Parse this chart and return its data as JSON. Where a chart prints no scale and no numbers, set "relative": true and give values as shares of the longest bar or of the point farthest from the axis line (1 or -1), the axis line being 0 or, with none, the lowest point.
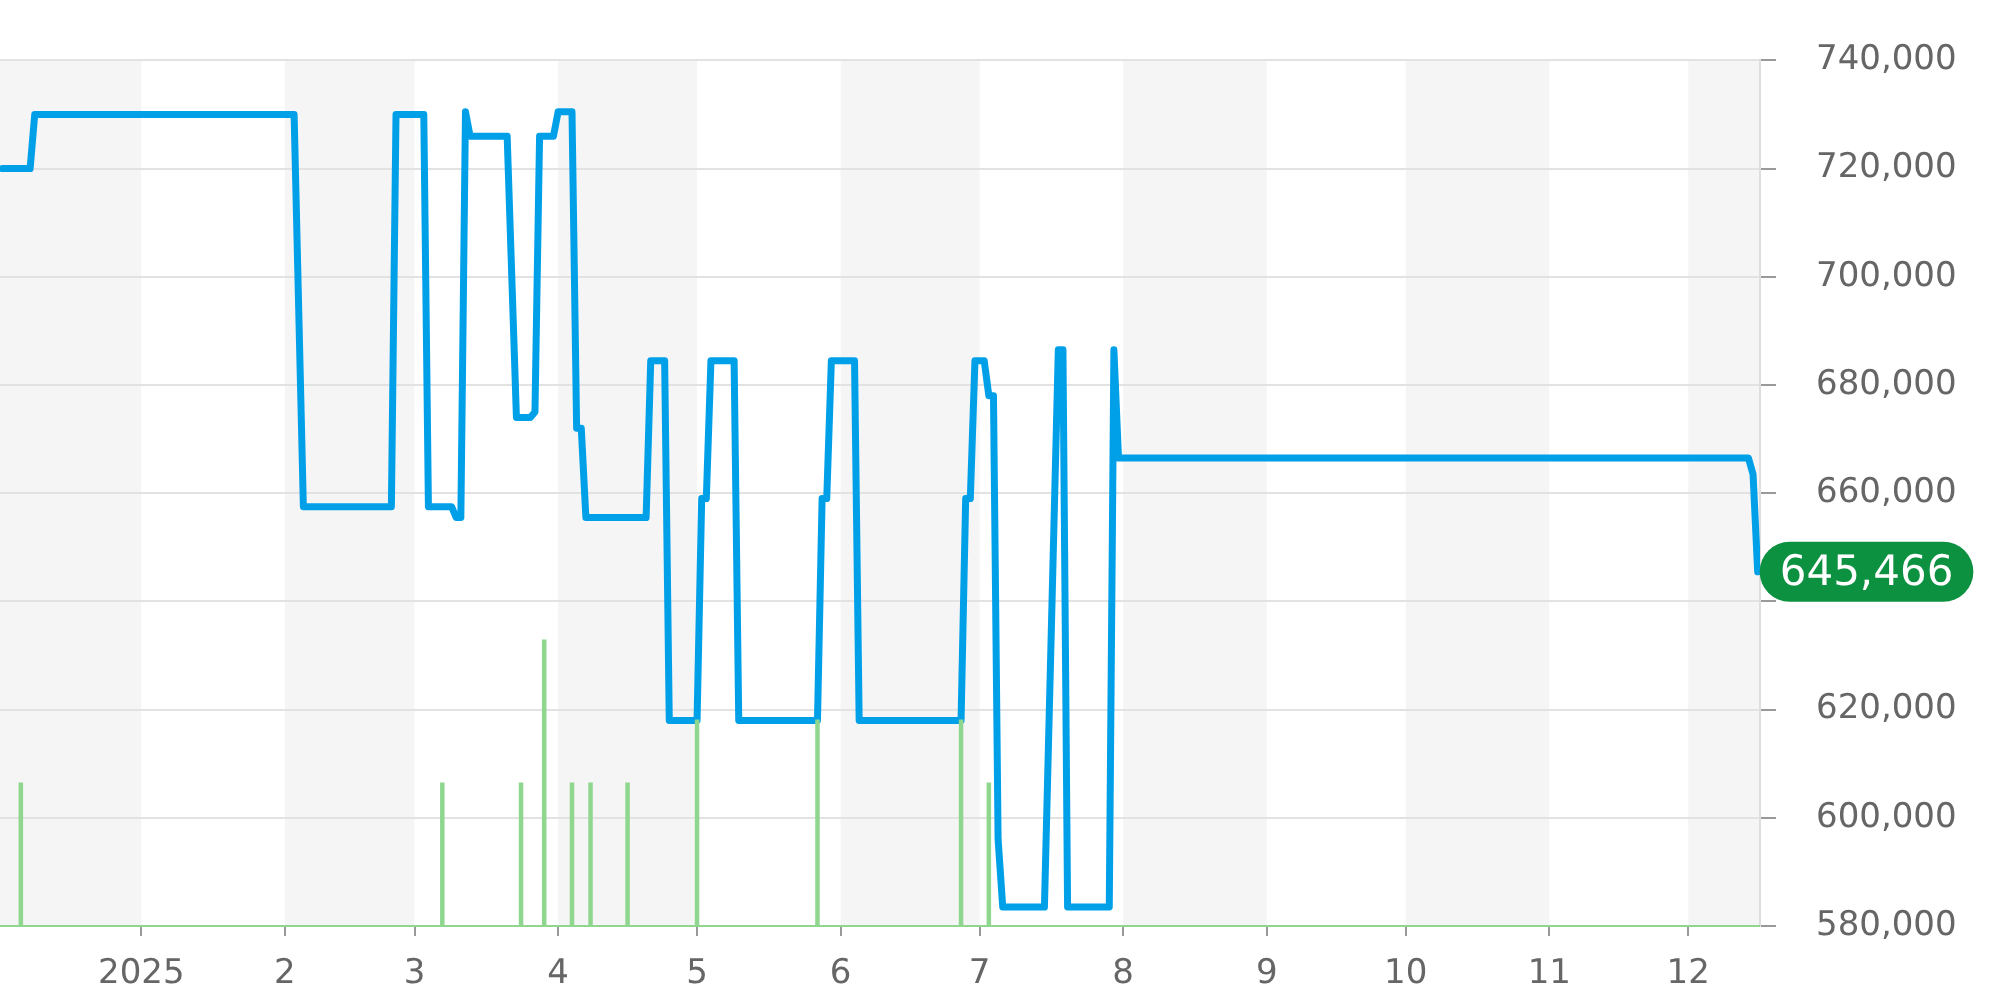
{
  "chart_data": [
    {
      "type": "line",
      "xlim": [
        "2024-12-01T12:00",
        "2025-12-16T12:00"
      ],
      "xticks": [
        {
          "value": "2025-01-01",
          "label": "2025"
        },
        {
          "value": "2025-02-01",
          "label": "2"
        },
        {
          "value": "2025-03-01",
          "label": "3"
        },
        {
          "value": "2025-04-01",
          "label": "4"
        },
        {
          "value": "2025-05-01",
          "label": "5"
        },
        {
          "value": "2025-06-01",
          "label": "6"
        },
        {
          "value": "2025-07-01",
          "label": "7"
        },
        {
          "value": "2025-08-01",
          "label": "8"
        },
        {
          "value": "2025-09-01",
          "label": "9"
        },
        {
          "value": "2025-10-01",
          "label": "10"
        },
        {
          "value": "2025-11-01",
          "label": "11"
        },
        {
          "value": "2025-12-01",
          "label": "12"
        }
      ],
      "ylim": [
        580000,
        740000
      ],
      "yticks": [
        {
          "value": 580000,
          "label": "580,000"
        },
        {
          "value": 600000,
          "label": "600,000"
        },
        {
          "value": 620000,
          "label": "620,000"
        },
        {
          "value": 640000,
          "label": null
        },
        {
          "value": 660000,
          "label": "660,000"
        },
        {
          "value": 680000,
          "label": "680,000"
        },
        {
          "value": 700000,
          "label": "700,000"
        },
        {
          "value": 720000,
          "label": "720,000"
        },
        {
          "value": 740000,
          "label": "740,000"
        }
      ],
      "grid": "y",
      "color": "#00a0e9",
      "x": [
        "2024-12-02",
        "2024-12-08",
        "2024-12-09",
        "2025-02-03",
        "2025-02-05",
        "2025-02-24",
        "2025-02-25",
        "2025-03-03",
        "2025-03-04",
        "2025-03-09",
        "2025-03-10",
        "2025-03-11",
        "2025-03-12",
        "2025-03-13",
        "2025-03-21",
        "2025-03-23",
        "2025-03-26",
        "2025-03-27",
        "2025-03-28",
        "2025-03-31",
        "2025-04-01",
        "2025-04-04",
        "2025-04-05",
        "2025-04-06",
        "2025-04-07",
        "2025-04-20",
        "2025-04-21",
        "2025-04-24",
        "2025-04-25",
        "2025-05-01",
        "2025-05-02",
        "2025-05-03",
        "2025-05-04",
        "2025-05-09",
        "2025-05-10",
        "2025-05-27",
        "2025-05-28",
        "2025-05-29",
        "2025-05-30",
        "2025-06-04",
        "2025-06-05",
        "2025-06-27",
        "2025-06-28",
        "2025-06-29",
        "2025-06-30",
        "2025-07-02",
        "2025-07-03",
        "2025-07-04",
        "2025-07-05",
        "2025-07-06",
        "2025-07-15",
        "2025-07-18",
        "2025-07-19",
        "2025-07-20",
        "2025-07-29",
        "2025-07-30",
        "2025-07-31",
        "2025-12-14",
        "2025-12-15",
        "2025-12-16"
      ],
      "values": [
        720000,
        720000,
        730000,
        730000,
        657500,
        657500,
        730000,
        730000,
        657500,
        657500,
        655500,
        655500,
        730500,
        726000,
        726000,
        674000,
        674000,
        675000,
        726000,
        726000,
        730500,
        730500,
        672000,
        672000,
        655500,
        655500,
        684500,
        684500,
        618000,
        618000,
        659000,
        659000,
        684500,
        684500,
        618000,
        618000,
        659000,
        659000,
        684500,
        684500,
        618000,
        618000,
        659000,
        659000,
        684500,
        684500,
        678000,
        678000,
        596000,
        583500,
        583500,
        686500,
        686500,
        583500,
        583500,
        686500,
        666500,
        666500,
        663500,
        645466
      ],
      "bands": [
        {
          "axis": "x",
          "from": "2024-12-01T12:00",
          "to": "2025-01-01",
          "color": "#f5f5f5"
        },
        {
          "axis": "x",
          "from": "2025-02-01",
          "to": "2025-03-01",
          "color": "#f5f5f5"
        },
        {
          "axis": "x",
          "from": "2025-04-01",
          "to": "2025-05-01",
          "color": "#f5f5f5"
        },
        {
          "axis": "x",
          "from": "2025-06-01",
          "to": "2025-07-01",
          "color": "#f5f5f5"
        },
        {
          "axis": "x",
          "from": "2025-08-01",
          "to": "2025-09-01",
          "color": "#f5f5f5"
        },
        {
          "axis": "x",
          "from": "2025-10-01",
          "to": "2025-11-01",
          "color": "#f5f5f5"
        },
        {
          "axis": "x",
          "from": "2025-12-01",
          "to": "2025-12-16T12:00",
          "color": "#f5f5f5"
        }
      ],
      "annotations": [
        {
          "text": "645,466",
          "x": "2025-12-16",
          "y": 645466
        }
      ]
    },
    {
      "type": "bar",
      "relative": true,
      "xlim": [
        "2024-12-01T12:00",
        "2025-12-16T12:00"
      ],
      "color": "#8fd68f",
      "x": [
        "2024-12-06",
        "2025-03-07",
        "2025-03-24",
        "2025-03-29",
        "2025-04-04",
        "2025-04-08",
        "2025-04-16",
        "2025-05-01",
        "2025-05-27",
        "2025-06-27",
        "2025-07-03"
      ],
      "values": [
        0.5,
        0.5,
        0.5,
        1,
        0.5,
        0.5,
        0.5,
        0.72,
        0.72,
        0.72,
        0.5
      ]
    }
  ]
}
